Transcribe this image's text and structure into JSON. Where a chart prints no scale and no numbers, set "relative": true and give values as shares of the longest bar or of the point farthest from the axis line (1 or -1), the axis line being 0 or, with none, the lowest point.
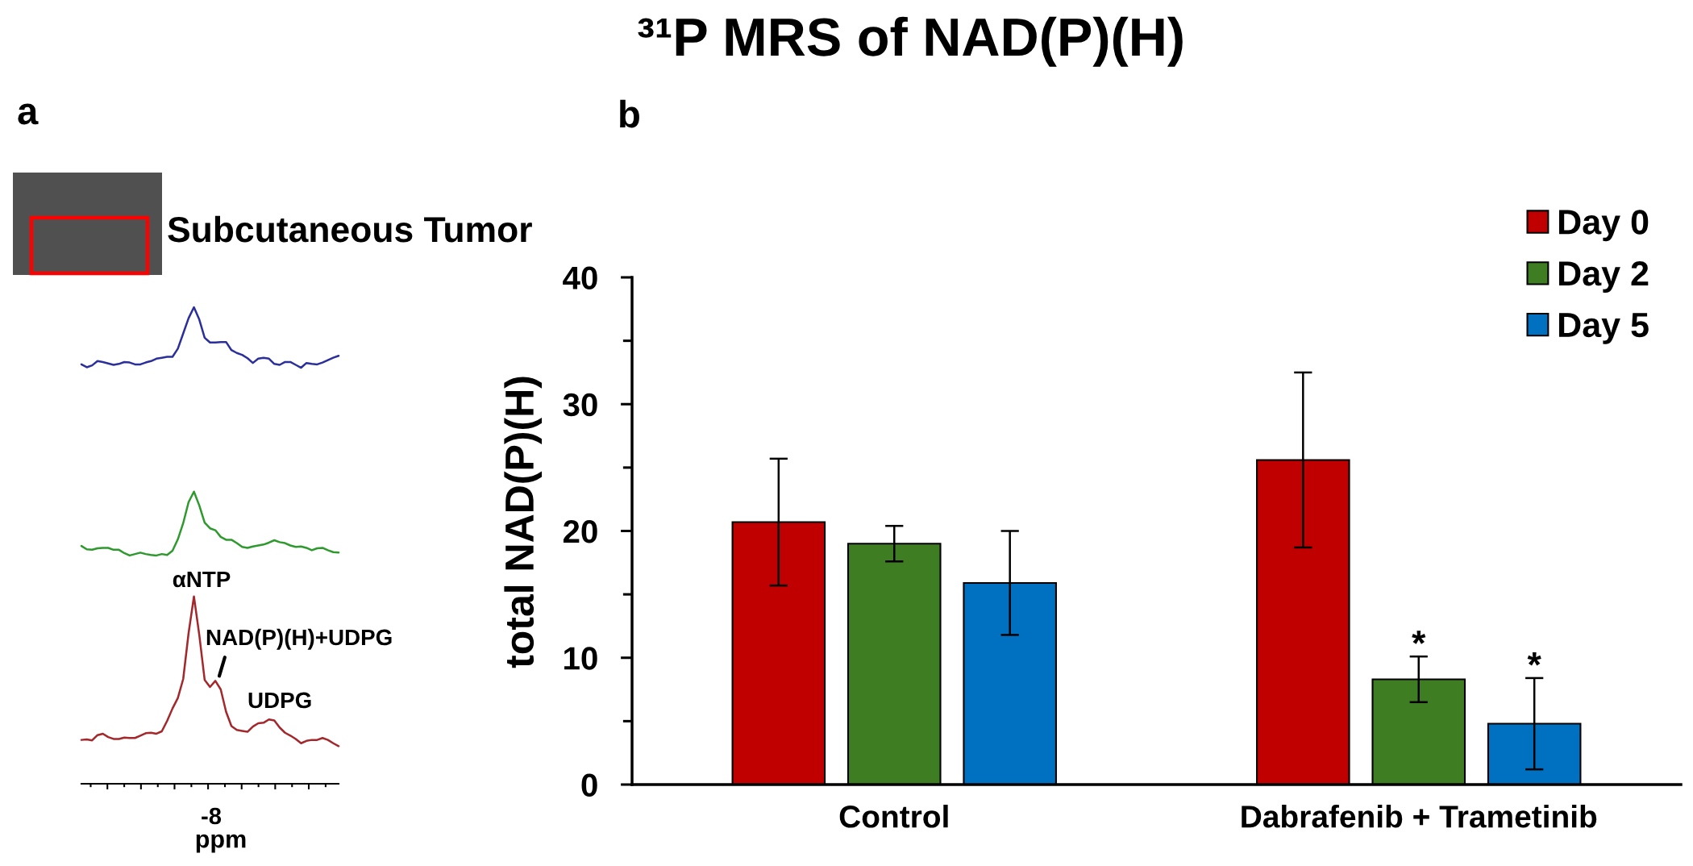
{
  "chart_data": [
    {
      "type": "line",
      "relative": true,
      "xlabel": "ppm",
      "categories": [
        null,
        null,
        null,
        null,
        null,
        null,
        null,
        null,
        null,
        null,
        null,
        null,
        null,
        null,
        null,
        null,
        null,
        null,
        null,
        null,
        null,
        null,
        null,
        null,
        null,
        null,
        null,
        null,
        null,
        null,
        null,
        null,
        null,
        null,
        null,
        null,
        null,
        null,
        null,
        null,
        null,
        null,
        null,
        null,
        null,
        null,
        null,
        null,
        null
      ],
      "annotations": [
        "a",
        "Subcutaneous Tumor",
        "αNTP",
        "NAD(P)(H)+UDPG",
        "UDPG",
        "-8"
      ],
      "series": [
        {
          "color": "#2b2f9c",
          "values": [
            0.88,
            0.874,
            0.878,
            0.887,
            0.885,
            0.882,
            0.879,
            0.881,
            0.885,
            0.884,
            0.88,
            0.88,
            0.884,
            0.887,
            0.892,
            0.894,
            0.896,
            0.896,
            0.913,
            0.945,
            0.977,
            1.0,
            0.974,
            0.936,
            0.926,
            0.926,
            0.927,
            0.927,
            0.91,
            0.904,
            0.9,
            0.893,
            0.883,
            0.892,
            0.894,
            0.892,
            0.881,
            0.879,
            0.885,
            0.885,
            0.879,
            0.873,
            0.883,
            0.881,
            0.88,
            0.884,
            0.889,
            0.894,
            0.898
          ]
        },
        {
          "color": "#2e9a2e",
          "values": [
            0.499,
            0.492,
            0.491,
            0.494,
            0.495,
            0.495,
            0.491,
            0.491,
            0.484,
            0.479,
            0.482,
            0.485,
            0.482,
            0.48,
            0.479,
            0.482,
            0.48,
            0.489,
            0.513,
            0.547,
            0.591,
            0.613,
            0.584,
            0.548,
            0.536,
            0.532,
            0.518,
            0.512,
            0.512,
            0.505,
            0.497,
            0.495,
            0.498,
            0.5,
            0.502,
            0.506,
            0.511,
            0.507,
            0.505,
            0.5,
            0.497,
            0.498,
            0.495,
            0.49,
            0.494,
            0.495,
            0.49,
            0.486,
            0.485
          ]
        },
        {
          "color": "#a3272b",
          "values": [
            0.092,
            0.093,
            0.091,
            0.102,
            0.105,
            0.098,
            0.094,
            0.094,
            0.097,
            0.096,
            0.096,
            0.101,
            0.106,
            0.107,
            0.105,
            0.11,
            0.132,
            0.158,
            0.18,
            0.22,
            0.316,
            0.393,
            0.312,
            0.218,
            0.203,
            0.216,
            0.198,
            0.151,
            0.121,
            0.113,
            0.111,
            0.109,
            0.12,
            0.127,
            0.128,
            0.135,
            0.133,
            0.118,
            0.107,
            0.101,
            0.094,
            0.085,
            0.09,
            0.092,
            0.092,
            0.096,
            0.092,
            0.085,
            0.079
          ]
        }
      ]
    },
    {
      "type": "bar",
      "title": "³¹P MRS of NAD(P)(H)",
      "ylabel": "total NAD(P)(H)",
      "categories": [
        "Control",
        "Dabrafenib + Trametinib"
      ],
      "series": [
        {
          "name": "Day 0",
          "color": "#c00000",
          "values": [
            20.7,
            25.6
          ],
          "errors": [
            5.0,
            6.9
          ]
        },
        {
          "name": "Day 2",
          "color": "#3f7d23",
          "values": [
            19.0,
            8.3
          ],
          "errors": [
            1.4,
            1.8
          ],
          "value_labels": [
            null,
            "*"
          ]
        },
        {
          "name": "Day 5",
          "color": "#0070c0",
          "values": [
            15.9,
            4.8
          ],
          "errors": [
            4.1,
            3.6
          ],
          "value_labels": [
            null,
            "*"
          ]
        }
      ],
      "ylim": [
        0,
        40
      ],
      "yticks": [
        0,
        {
          "value": 5,
          "label": null
        },
        10,
        {
          "value": 15,
          "label": null
        },
        20,
        {
          "value": 25,
          "label": null
        },
        30,
        {
          "value": 35,
          "label": null
        },
        40
      ],
      "legend": "top right",
      "annotations": [
        "b"
      ]
    }
  ]
}
